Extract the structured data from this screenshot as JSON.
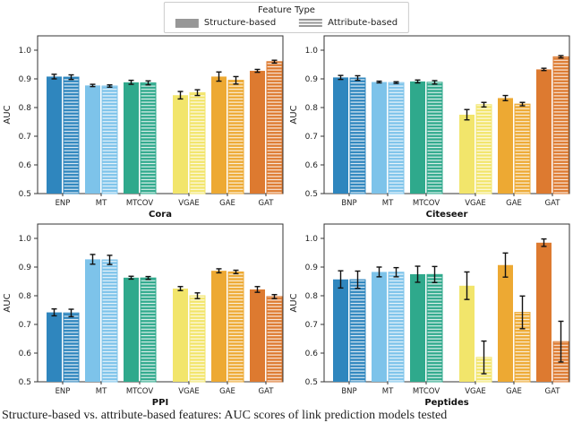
{
  "figure": {
    "legend": {
      "title": "Feature Type",
      "items": [
        {
          "label": "Structure-based",
          "style": "solid"
        },
        {
          "label": "Attribute-based",
          "style": "hatched"
        }
      ],
      "swatch_color": "#979797"
    },
    "caption": "Structure-based vs. attribute-based features: AUC scores of link prediction models tested"
  },
  "palette": {
    "category_colors": [
      "#2f86be",
      "#7dc3ea",
      "#2fa98c",
      "#f2e56b",
      "#eda933",
      "#dd7a30"
    ],
    "error_color": "#111111",
    "spine_color": "#333333"
  },
  "chart_data": [
    {
      "type": "bar",
      "title": "Cora",
      "ylabel": "AUC",
      "ylim": [
        0.5,
        1.05
      ],
      "yticks": [
        0.5,
        0.6,
        0.7,
        0.8,
        0.9,
        1.0
      ],
      "categories": [
        "ENP",
        "MT",
        "MTCOV",
        "VGAE",
        "GAE",
        "GAT"
      ],
      "legend_position": "none",
      "grid": false,
      "series": [
        {
          "name": "Structure-based",
          "values": [
            0.908,
            0.877,
            0.888,
            0.843,
            0.908,
            0.928
          ],
          "errors": [
            0.008,
            0.004,
            0.007,
            0.013,
            0.016,
            0.005
          ]
        },
        {
          "name": "Attribute-based",
          "values": [
            0.906,
            0.875,
            0.886,
            0.852,
            0.895,
            0.96
          ],
          "errors": [
            0.008,
            0.004,
            0.007,
            0.01,
            0.013,
            0.005
          ]
        }
      ]
    },
    {
      "type": "bar",
      "title": "Citeseer",
      "ylabel": "AUC",
      "ylim": [
        0.5,
        1.05
      ],
      "yticks": [
        0.5,
        0.6,
        0.7,
        0.8,
        0.9,
        1.0
      ],
      "categories": [
        "BNP",
        "MT",
        "MTCOV",
        "VGAE",
        "GAE",
        "GAT"
      ],
      "legend_position": "none",
      "grid": false,
      "series": [
        {
          "name": "Structure-based",
          "values": [
            0.905,
            0.889,
            0.891,
            0.775,
            0.833,
            0.933
          ],
          "errors": [
            0.007,
            0.003,
            0.005,
            0.018,
            0.009,
            0.004
          ]
        },
        {
          "name": "Attribute-based",
          "values": [
            0.903,
            0.887,
            0.888,
            0.81,
            0.812,
            0.977
          ],
          "errors": [
            0.008,
            0.003,
            0.006,
            0.008,
            0.006,
            0.004
          ]
        }
      ]
    },
    {
      "type": "bar",
      "title": "PPI",
      "ylabel": "AUC",
      "ylim": [
        0.5,
        1.05
      ],
      "yticks": [
        0.5,
        0.6,
        0.7,
        0.8,
        0.9,
        1.0
      ],
      "categories": [
        "ENP",
        "MT",
        "MTCOV",
        "VGAE",
        "GAE",
        "GAT"
      ],
      "legend_position": "none",
      "grid": false,
      "series": [
        {
          "name": "Structure-based",
          "values": [
            0.742,
            0.927,
            0.863,
            0.825,
            0.887,
            0.822
          ],
          "errors": [
            0.012,
            0.017,
            0.005,
            0.007,
            0.007,
            0.01
          ]
        },
        {
          "name": "Attribute-based",
          "values": [
            0.74,
            0.925,
            0.862,
            0.8,
            0.883,
            0.797
          ],
          "errors": [
            0.013,
            0.016,
            0.005,
            0.01,
            0.006,
            0.007
          ]
        }
      ]
    },
    {
      "type": "bar",
      "title": "Peptides",
      "ylabel": "AUC",
      "ylim": [
        0.5,
        1.05
      ],
      "yticks": [
        0.5,
        0.6,
        0.7,
        0.8,
        0.9,
        1.0
      ],
      "categories": [
        "BNP",
        "MT",
        "MTCOV",
        "VGAE",
        "GAE",
        "GAT"
      ],
      "legend_position": "none",
      "grid": false,
      "series": [
        {
          "name": "Structure-based",
          "values": [
            0.857,
            0.883,
            0.875,
            0.835,
            0.907,
            0.985
          ],
          "errors": [
            0.03,
            0.017,
            0.028,
            0.048,
            0.042,
            0.013
          ]
        },
        {
          "name": "Attribute-based",
          "values": [
            0.856,
            0.882,
            0.874,
            0.585,
            0.742,
            0.64
          ],
          "errors": [
            0.03,
            0.016,
            0.028,
            0.057,
            0.057,
            0.071
          ]
        }
      ]
    }
  ]
}
